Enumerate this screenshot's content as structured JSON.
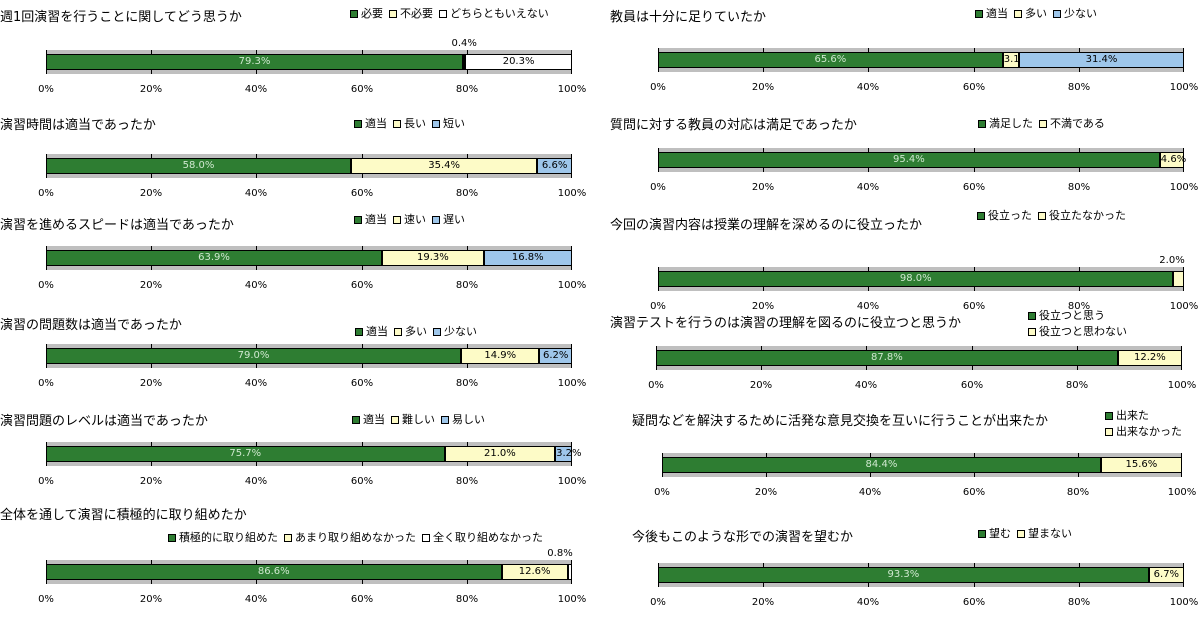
{
  "colors": {
    "green": "#2e7d32",
    "yellow": "#fdfbc7",
    "white": "#ffffff",
    "blue": "#9ec6ea",
    "track": "#bfbfbf"
  },
  "axis_ticks": [
    "0%",
    "20%",
    "40%",
    "60%",
    "80%",
    "100%"
  ],
  "chart_data": [
    {
      "type": "bar",
      "orientation": "horizontal-stacked",
      "title": "週1回演習を行うことに関してどう思うか",
      "xlim": [
        0,
        100
      ],
      "legend_position": "top-right",
      "series": [
        {
          "name": "必要",
          "value": 79.3,
          "label": "79.3%",
          "color": "green"
        },
        {
          "name": "不必要",
          "value": 0.4,
          "label": "0.4%",
          "color": "yellow"
        },
        {
          "name": "どちらともいえない",
          "value": 20.3,
          "label": "20.3%",
          "color": "white"
        }
      ]
    },
    {
      "type": "bar",
      "orientation": "horizontal-stacked",
      "title": "演習時間は適当であったか",
      "xlim": [
        0,
        100
      ],
      "legend_position": "top-right",
      "series": [
        {
          "name": "適当",
          "value": 58.0,
          "label": "58.0%",
          "color": "green"
        },
        {
          "name": "長い",
          "value": 35.4,
          "label": "35.4%",
          "color": "yellow"
        },
        {
          "name": "短い",
          "value": 6.6,
          "label": "6.6%",
          "color": "blue"
        }
      ]
    },
    {
      "type": "bar",
      "orientation": "horizontal-stacked",
      "title": "演習を進めるスピードは適当であったか",
      "xlim": [
        0,
        100
      ],
      "legend_position": "top-right",
      "series": [
        {
          "name": "適当",
          "value": 63.9,
          "label": "63.9%",
          "color": "green"
        },
        {
          "name": "速い",
          "value": 19.3,
          "label": "19.3%",
          "color": "yellow"
        },
        {
          "name": "遅い",
          "value": 16.8,
          "label": "16.8%",
          "color": "blue"
        }
      ]
    },
    {
      "type": "bar",
      "orientation": "horizontal-stacked",
      "title": "演習の問題数は適当であったか",
      "xlim": [
        0,
        100
      ],
      "legend_position": "top-right",
      "series": [
        {
          "name": "適当",
          "value": 79.0,
          "label": "79.0%",
          "color": "green"
        },
        {
          "name": "多い",
          "value": 14.9,
          "label": "14.9%",
          "color": "yellow"
        },
        {
          "name": "少ない",
          "value": 6.2,
          "label": "6.2%",
          "color": "blue"
        }
      ]
    },
    {
      "type": "bar",
      "orientation": "horizontal-stacked",
      "title": "演習問題のレベルは適当であったか",
      "xlim": [
        0,
        100
      ],
      "legend_position": "top-right",
      "series": [
        {
          "name": "適当",
          "value": 75.7,
          "label": "75.7%",
          "color": "green"
        },
        {
          "name": "難しい",
          "value": 21.0,
          "label": "21.0%",
          "color": "yellow"
        },
        {
          "name": "易しい",
          "value": 3.2,
          "label": "3.2%",
          "color": "blue"
        }
      ]
    },
    {
      "type": "bar",
      "orientation": "horizontal-stacked",
      "title": "全体を通して演習に積極的に取り組めたか",
      "xlim": [
        0,
        100
      ],
      "legend_position": "top-right",
      "series": [
        {
          "name": "積極的に取り組めた",
          "value": 86.6,
          "label": "86.6%",
          "color": "green"
        },
        {
          "name": "あまり取り組めなかった",
          "value": 12.6,
          "label": "12.6%",
          "color": "yellow"
        },
        {
          "name": "全く取り組めなかった",
          "value": 0.8,
          "label": "0.8%",
          "color": "white"
        }
      ]
    },
    {
      "type": "bar",
      "orientation": "horizontal-stacked",
      "title": "教員は十分に足りていたか",
      "xlim": [
        0,
        100
      ],
      "legend_position": "top-right",
      "series": [
        {
          "name": "適当",
          "value": 65.6,
          "label": "65.6%",
          "color": "green"
        },
        {
          "name": "多い",
          "value": 3.1,
          "label": "3.1%",
          "color": "yellow"
        },
        {
          "name": "少ない",
          "value": 31.4,
          "label": "31.4%",
          "color": "blue"
        }
      ]
    },
    {
      "type": "bar",
      "orientation": "horizontal-stacked",
      "title": "質問に対する教員の対応は満足であったか",
      "xlim": [
        0,
        100
      ],
      "legend_position": "top-right",
      "series": [
        {
          "name": "満足した",
          "value": 95.4,
          "label": "95.4%",
          "color": "green"
        },
        {
          "name": "不満である",
          "value": 4.6,
          "label": "4.6%",
          "color": "yellow"
        }
      ]
    },
    {
      "type": "bar",
      "orientation": "horizontal-stacked",
      "title": "今回の演習内容は授業の理解を深めるのに役立ったか",
      "xlim": [
        0,
        100
      ],
      "legend_position": "top-right",
      "series": [
        {
          "name": "役立った",
          "value": 98.0,
          "label": "98.0%",
          "color": "green"
        },
        {
          "name": "役立たなかった",
          "value": 2.0,
          "label": "2.0%",
          "color": "yellow"
        }
      ]
    },
    {
      "type": "bar",
      "orientation": "horizontal-stacked",
      "title": "演習テストを行うのは演習の理解を図るのに役立つと思うか",
      "xlim": [
        0,
        100
      ],
      "legend_position": "top-right",
      "series": [
        {
          "name": "役立つと思う",
          "value": 87.8,
          "label": "87.8%",
          "color": "green"
        },
        {
          "name": "役立つと思わない",
          "value": 12.2,
          "label": "12.2%",
          "color": "yellow"
        }
      ]
    },
    {
      "type": "bar",
      "orientation": "horizontal-stacked",
      "title": "疑問などを解決するために活発な意見交換を互いに行うことが出来たか",
      "xlim": [
        0,
        100
      ],
      "legend_position": "top-right",
      "series": [
        {
          "name": "出来た",
          "value": 84.4,
          "label": "84.4%",
          "color": "green"
        },
        {
          "name": "出来なかった",
          "value": 15.6,
          "label": "15.6%",
          "color": "yellow"
        }
      ]
    },
    {
      "type": "bar",
      "orientation": "horizontal-stacked",
      "title": "今後もこのような形での演習を望むか",
      "xlim": [
        0,
        100
      ],
      "legend_position": "top-right",
      "series": [
        {
          "name": "望む",
          "value": 93.3,
          "label": "93.3%",
          "color": "green"
        },
        {
          "name": "望まない",
          "value": 6.7,
          "label": "6.7%",
          "color": "yellow"
        }
      ]
    }
  ]
}
